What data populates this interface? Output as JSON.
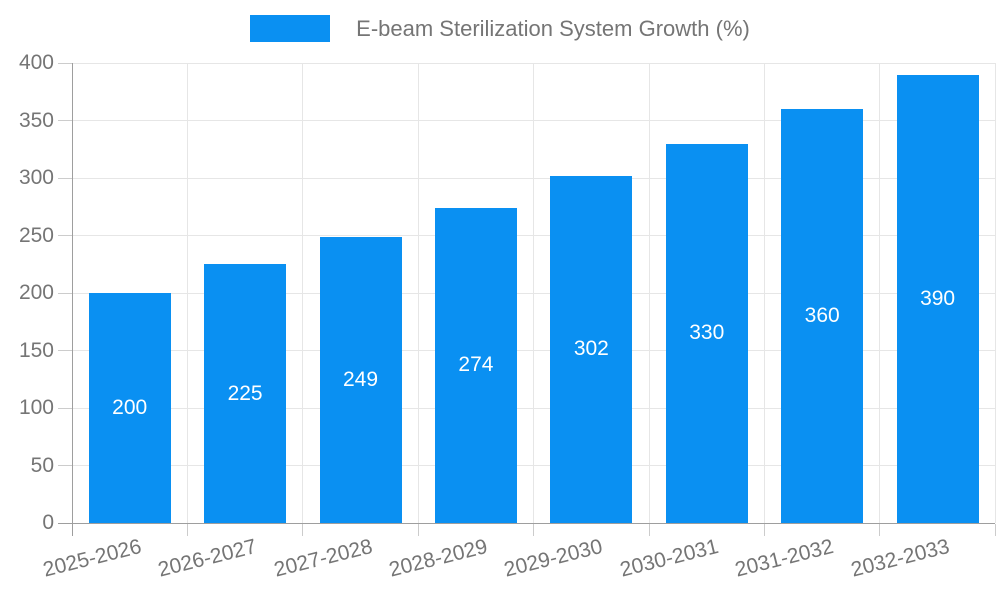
{
  "legend": {
    "items": [
      {
        "label": "E-beam Sterilization System Growth (%)",
        "color": "#0a90f2"
      }
    ]
  },
  "chart_data": {
    "type": "bar",
    "title": "E-beam Sterilization System Growth (%)",
    "categories": [
      "2025-2026",
      "2026-2027",
      "2027-2028",
      "2028-2029",
      "2029-2030",
      "2030-2031",
      "2031-2032",
      "2032-2033"
    ],
    "values": [
      200,
      225,
      249,
      274,
      302,
      330,
      360,
      390
    ],
    "bar_value_labels": [
      "200",
      "225",
      "249",
      "274",
      "302",
      "330",
      "360",
      "390"
    ],
    "xlabel": "",
    "ylabel": "",
    "ylim": [
      0,
      400
    ],
    "ytick_step": 50,
    "yticks": [
      0,
      50,
      100,
      150,
      200,
      250,
      300,
      350,
      400
    ],
    "grid": true,
    "legend_position": "top",
    "bar_labels_inside": true,
    "x_label_rotation_deg": -14,
    "colors": {
      "bar": "#0a90f2",
      "bar_label": "#ffffff",
      "axis_text": "#757575",
      "gridline": "#e6e6e6",
      "axis_line": "#9e9e9e",
      "tick": "#cccccc",
      "background": "#ffffff"
    }
  }
}
